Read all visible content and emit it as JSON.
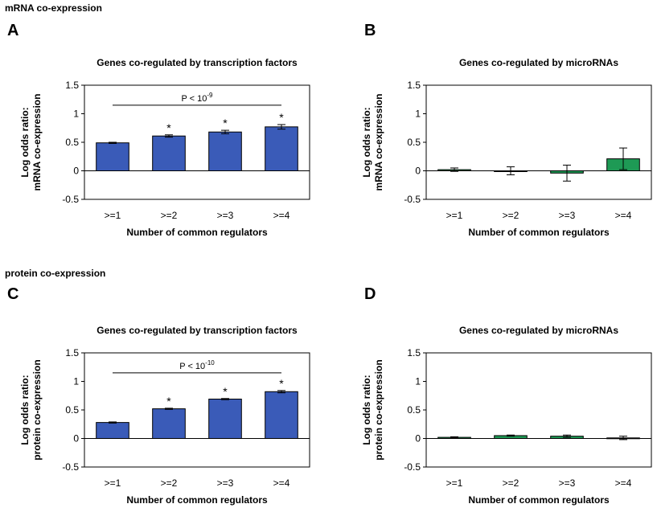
{
  "sections": [
    {
      "title": "mRNA co-expression"
    },
    {
      "title": "protein co-expression"
    }
  ],
  "chart_data": [
    {
      "panel": "A",
      "type": "bar",
      "title": "Genes co-regulated by transcription factors",
      "xlabel": "Number of common regulators",
      "ylabel": [
        "Log odds ratio:",
        "mRNA co-expression"
      ],
      "categories": [
        ">=1",
        ">=2",
        ">=3",
        ">=4"
      ],
      "values": [
        0.49,
        0.61,
        0.68,
        0.77
      ],
      "errors": [
        0.01,
        0.02,
        0.03,
        0.04
      ],
      "annotations": [
        "",
        "*",
        "*",
        "*"
      ],
      "bracket": {
        "text": "P < 10",
        "exponent": "-9",
        "from": ">=1",
        "to": ">=4",
        "y": 1.15
      },
      "ylim": [
        -0.5,
        1.5
      ],
      "yticks": [
        "-0.5",
        "0",
        "0.5",
        "1",
        "1.5"
      ],
      "color": "#3a5bb8"
    },
    {
      "panel": "B",
      "type": "bar",
      "title": "Genes co-regulated by microRNAs",
      "xlabel": "Number of common regulators",
      "ylabel": [
        "Log odds ratio:",
        "mRNA co-expression"
      ],
      "categories": [
        ">=1",
        ">=2",
        ">=3",
        ">=4"
      ],
      "values": [
        0.02,
        0.0,
        -0.04,
        0.21
      ],
      "errors": [
        0.03,
        0.07,
        0.14,
        0.19
      ],
      "annotations": [
        "",
        "",
        "",
        ""
      ],
      "ylim": [
        -0.5,
        1.5
      ],
      "yticks": [
        "-0.5",
        "0",
        "0.5",
        "1",
        "1.5"
      ],
      "color": "#1e9a55"
    },
    {
      "panel": "C",
      "type": "bar",
      "title": "Genes co-regulated by transcription factors",
      "xlabel": "Number of common regulators",
      "ylabel": [
        "Log odds ratio:",
        "protein co-expression"
      ],
      "categories": [
        ">=1",
        ">=2",
        ">=3",
        ">=4"
      ],
      "values": [
        0.28,
        0.52,
        0.69,
        0.82
      ],
      "errors": [
        0.01,
        0.01,
        0.01,
        0.02
      ],
      "annotations": [
        "",
        "*",
        "*",
        "*"
      ],
      "bracket": {
        "text": "P < 10",
        "exponent": "-10",
        "from": ">=1",
        "to": ">=4",
        "y": 1.15
      },
      "ylim": [
        -0.5,
        1.5
      ],
      "yticks": [
        "-0.5",
        "0",
        "0.5",
        "1",
        "1.5"
      ],
      "color": "#3a5bb8"
    },
    {
      "panel": "D",
      "type": "bar",
      "title": "Genes co-regulated by microRNAs",
      "xlabel": "Number of common regulators",
      "ylabel": [
        "Log odds ratio:",
        "protein co-expression"
      ],
      "categories": [
        ">=1",
        ">=2",
        ">=3",
        ">=4"
      ],
      "values": [
        0.02,
        0.05,
        0.04,
        0.01
      ],
      "errors": [
        0.01,
        0.01,
        0.02,
        0.03
      ],
      "annotations": [
        "",
        "",
        "",
        ""
      ],
      "ylim": [
        -0.5,
        1.5
      ],
      "yticks": [
        "-0.5",
        "0",
        "0.5",
        "1",
        "1.5"
      ],
      "color": "#1e9a55"
    }
  ]
}
